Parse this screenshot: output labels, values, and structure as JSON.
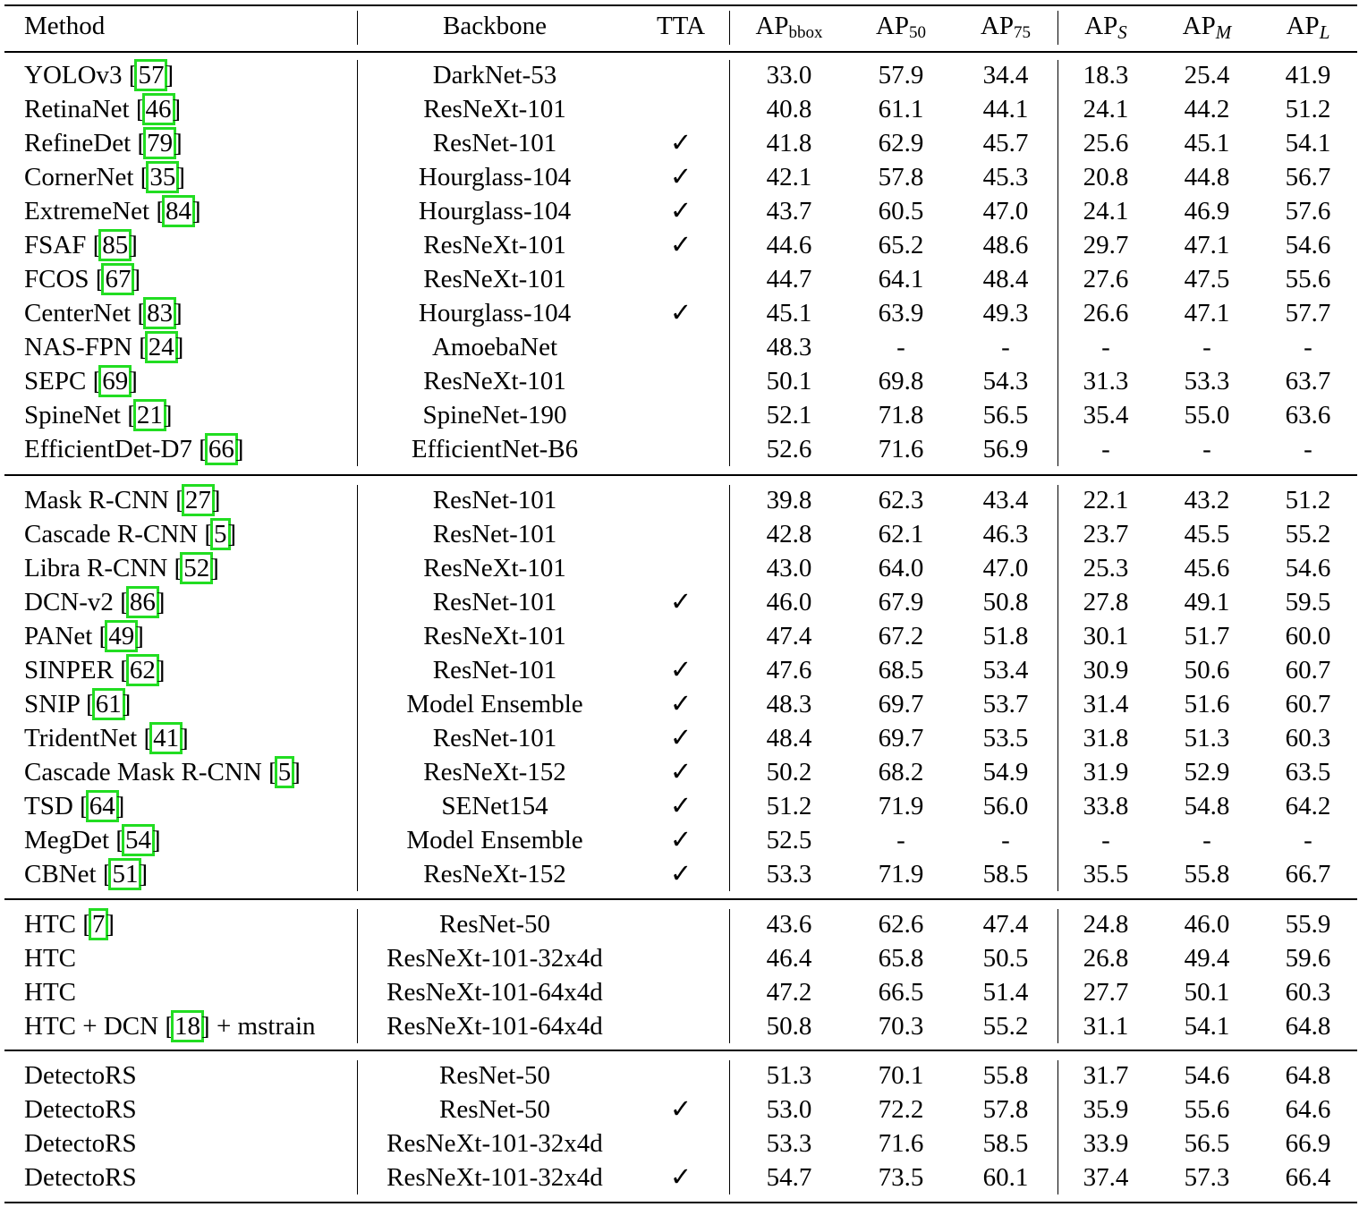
{
  "header": {
    "method": "Method",
    "backbone": "Backbone",
    "tta": "TTA",
    "ap_base": "AP",
    "ap_bbox_sub": "bbox",
    "ap50_sub": "50",
    "ap75_sub": "75",
    "aps_sub": "S",
    "apm_sub": "M",
    "apl_sub": "L"
  },
  "sections": [
    {
      "rows": [
        {
          "method": "YOLOv3",
          "ref": "57",
          "backbone": "DarkNet-53",
          "tta": "",
          "ap": "33.0",
          "ap50": "57.9",
          "ap75": "34.4",
          "aps": "18.3",
          "apm": "25.4",
          "apl": "41.9"
        },
        {
          "method": "RetinaNet",
          "ref": "46",
          "backbone": "ResNeXt-101",
          "tta": "",
          "ap": "40.8",
          "ap50": "61.1",
          "ap75": "44.1",
          "aps": "24.1",
          "apm": "44.2",
          "apl": "51.2"
        },
        {
          "method": "RefineDet",
          "ref": "79",
          "backbone": "ResNet-101",
          "tta": "✓",
          "ap": "41.8",
          "ap50": "62.9",
          "ap75": "45.7",
          "aps": "25.6",
          "apm": "45.1",
          "apl": "54.1"
        },
        {
          "method": "CornerNet",
          "ref": "35",
          "backbone": "Hourglass-104",
          "tta": "✓",
          "ap": "42.1",
          "ap50": "57.8",
          "ap75": "45.3",
          "aps": "20.8",
          "apm": "44.8",
          "apl": "56.7"
        },
        {
          "method": "ExtremeNet",
          "ref": "84",
          "backbone": "Hourglass-104",
          "tta": "✓",
          "ap": "43.7",
          "ap50": "60.5",
          "ap75": "47.0",
          "aps": "24.1",
          "apm": "46.9",
          "apl": "57.6"
        },
        {
          "method": "FSAF",
          "ref": "85",
          "backbone": "ResNeXt-101",
          "tta": "✓",
          "ap": "44.6",
          "ap50": "65.2",
          "ap75": "48.6",
          "aps": "29.7",
          "apm": "47.1",
          "apl": "54.6"
        },
        {
          "method": "FCOS",
          "ref": "67",
          "backbone": "ResNeXt-101",
          "tta": "",
          "ap": "44.7",
          "ap50": "64.1",
          "ap75": "48.4",
          "aps": "27.6",
          "apm": "47.5",
          "apl": "55.6"
        },
        {
          "method": "CenterNet",
          "ref": "83",
          "backbone": "Hourglass-104",
          "tta": "✓",
          "ap": "45.1",
          "ap50": "63.9",
          "ap75": "49.3",
          "aps": "26.6",
          "apm": "47.1",
          "apl": "57.7"
        },
        {
          "method": "NAS-FPN",
          "ref": "24",
          "backbone": "AmoebaNet",
          "tta": "",
          "ap": "48.3",
          "ap50": "-",
          "ap75": "-",
          "aps": "-",
          "apm": "-",
          "apl": "-"
        },
        {
          "method": "SEPC",
          "ref": "69",
          "backbone": "ResNeXt-101",
          "tta": "",
          "ap": "50.1",
          "ap50": "69.8",
          "ap75": "54.3",
          "aps": "31.3",
          "apm": "53.3",
          "apl": "63.7"
        },
        {
          "method": "SpineNet",
          "ref": "21",
          "backbone": "SpineNet-190",
          "tta": "",
          "ap": "52.1",
          "ap50": "71.8",
          "ap75": "56.5",
          "aps": "35.4",
          "apm": "55.0",
          "apl": "63.6"
        },
        {
          "method": "EfficientDet-D7",
          "ref": "66",
          "backbone": "EfficientNet-B6",
          "tta": "",
          "ap": "52.6",
          "ap50": "71.6",
          "ap75": "56.9",
          "aps": "-",
          "apm": "-",
          "apl": "-"
        }
      ]
    },
    {
      "rows": [
        {
          "method": "Mask R-CNN",
          "ref": "27",
          "backbone": "ResNet-101",
          "tta": "",
          "ap": "39.8",
          "ap50": "62.3",
          "ap75": "43.4",
          "aps": "22.1",
          "apm": "43.2",
          "apl": "51.2"
        },
        {
          "method": "Cascade R-CNN",
          "ref": "5",
          "backbone": "ResNet-101",
          "tta": "",
          "ap": "42.8",
          "ap50": "62.1",
          "ap75": "46.3",
          "aps": "23.7",
          "apm": "45.5",
          "apl": "55.2"
        },
        {
          "method": "Libra R-CNN",
          "ref": "52",
          "backbone": "ResNeXt-101",
          "tta": "",
          "ap": "43.0",
          "ap50": "64.0",
          "ap75": "47.0",
          "aps": "25.3",
          "apm": "45.6",
          "apl": "54.6"
        },
        {
          "method": "DCN-v2",
          "ref": "86",
          "backbone": "ResNet-101",
          "tta": "✓",
          "ap": "46.0",
          "ap50": "67.9",
          "ap75": "50.8",
          "aps": "27.8",
          "apm": "49.1",
          "apl": "59.5"
        },
        {
          "method": "PANet",
          "ref": "49",
          "backbone": "ResNeXt-101",
          "tta": "",
          "ap": "47.4",
          "ap50": "67.2",
          "ap75": "51.8",
          "aps": "30.1",
          "apm": "51.7",
          "apl": "60.0"
        },
        {
          "method": "SINPER",
          "ref": "62",
          "backbone": "ResNet-101",
          "tta": "✓",
          "ap": "47.6",
          "ap50": "68.5",
          "ap75": "53.4",
          "aps": "30.9",
          "apm": "50.6",
          "apl": "60.7"
        },
        {
          "method": "SNIP",
          "ref": "61",
          "backbone": "Model Ensemble",
          "tta": "✓",
          "ap": "48.3",
          "ap50": "69.7",
          "ap75": "53.7",
          "aps": "31.4",
          "apm": "51.6",
          "apl": "60.7"
        },
        {
          "method": "TridentNet",
          "ref": "41",
          "backbone": "ResNet-101",
          "tta": "✓",
          "ap": "48.4",
          "ap50": "69.7",
          "ap75": "53.5",
          "aps": "31.8",
          "apm": "51.3",
          "apl": "60.3"
        },
        {
          "method": "Cascade Mask R-CNN",
          "ref": "5",
          "backbone": "ResNeXt-152",
          "tta": "✓",
          "ap": "50.2",
          "ap50": "68.2",
          "ap75": "54.9",
          "aps": "31.9",
          "apm": "52.9",
          "apl": "63.5"
        },
        {
          "method": "TSD",
          "ref": "64",
          "backbone": "SENet154",
          "tta": "✓",
          "ap": "51.2",
          "ap50": "71.9",
          "ap75": "56.0",
          "aps": "33.8",
          "apm": "54.8",
          "apl": "64.2"
        },
        {
          "method": "MegDet",
          "ref": "54",
          "backbone": "Model Ensemble",
          "tta": "✓",
          "ap": "52.5",
          "ap50": "-",
          "ap75": "-",
          "aps": "-",
          "apm": "-",
          "apl": "-"
        },
        {
          "method": "CBNet",
          "ref": "51",
          "backbone": "ResNeXt-152",
          "tta": "✓",
          "ap": "53.3",
          "ap50": "71.9",
          "ap75": "58.5",
          "aps": "35.5",
          "apm": "55.8",
          "apl": "66.7"
        }
      ]
    },
    {
      "rows": [
        {
          "method": "HTC",
          "ref": "7",
          "backbone": "ResNet-50",
          "tta": "",
          "ap": "43.6",
          "ap50": "62.6",
          "ap75": "47.4",
          "aps": "24.8",
          "apm": "46.0",
          "apl": "55.9"
        },
        {
          "method": "HTC",
          "ref": "",
          "backbone": "ResNeXt-101-32x4d",
          "tta": "",
          "ap": "46.4",
          "ap50": "65.8",
          "ap75": "50.5",
          "aps": "26.8",
          "apm": "49.4",
          "apl": "59.6"
        },
        {
          "method": "HTC",
          "ref": "",
          "backbone": "ResNeXt-101-64x4d",
          "tta": "",
          "ap": "47.2",
          "ap50": "66.5",
          "ap75": "51.4",
          "aps": "27.7",
          "apm": "50.1",
          "apl": "60.3"
        },
        {
          "method": "HTC + DCN",
          "ref": "18",
          "suffix": " + mstrain",
          "backbone": "ResNeXt-101-64x4d",
          "tta": "",
          "ap": "50.8",
          "ap50": "70.3",
          "ap75": "55.2",
          "aps": "31.1",
          "apm": "54.1",
          "apl": "64.8"
        }
      ]
    },
    {
      "rows": [
        {
          "method": "DetectoRS",
          "ref": "",
          "backbone": "ResNet-50",
          "tta": "",
          "ap": "51.3",
          "ap50": "70.1",
          "ap75": "55.8",
          "aps": "31.7",
          "apm": "54.6",
          "apl": "64.8"
        },
        {
          "method": "DetectoRS",
          "ref": "",
          "backbone": "ResNet-50",
          "tta": "✓",
          "ap": "53.0",
          "ap50": "72.2",
          "ap75": "57.8",
          "aps": "35.9",
          "apm": "55.6",
          "apl": "64.6"
        },
        {
          "method": "DetectoRS",
          "ref": "",
          "backbone": "ResNeXt-101-32x4d",
          "tta": "",
          "ap": "53.3",
          "ap50": "71.6",
          "ap75": "58.5",
          "aps": "33.9",
          "apm": "56.5",
          "apl": "66.9"
        },
        {
          "method": "DetectoRS",
          "ref": "",
          "backbone": "ResNeXt-101-32x4d",
          "tta": "✓",
          "ap": "54.7",
          "ap50": "73.5",
          "ap75": "60.1",
          "aps": "37.4",
          "apm": "57.3",
          "apl": "66.4"
        }
      ]
    }
  ]
}
